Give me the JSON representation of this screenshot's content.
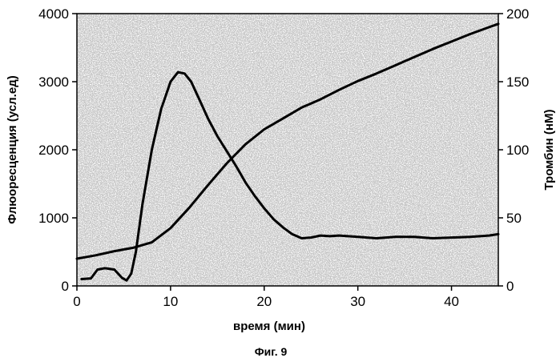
{
  "chart_data": {
    "type": "line",
    "xlabel": "время (мин)",
    "ylabel_left": "Флюоресценция (усл.ед)",
    "ylabel_right": "Тромбин (нМ)",
    "caption": "Фиг. 9",
    "xlim": [
      0,
      45
    ],
    "ylim_left": [
      0,
      4000
    ],
    "ylim_right": [
      0,
      200
    ],
    "x_ticks": [
      0,
      10,
      20,
      30,
      40
    ],
    "y_left_ticks": [
      0,
      1000,
      2000,
      3000,
      4000
    ],
    "y_right_ticks": [
      0,
      50,
      100,
      150,
      200
    ],
    "grid": false,
    "series": [
      {
        "axis": "left",
        "x": [
          0,
          2,
          4,
          6,
          8,
          10,
          12,
          14,
          16,
          18,
          20,
          22,
          24,
          26,
          28,
          30,
          32,
          34,
          36,
          38,
          40,
          42,
          44,
          45
        ],
        "y": [
          400,
          450,
          510,
          560,
          640,
          850,
          1150,
          1480,
          1800,
          2080,
          2300,
          2460,
          2620,
          2740,
          2880,
          3010,
          3120,
          3240,
          3360,
          3480,
          3590,
          3700,
          3800,
          3850
        ]
      },
      {
        "axis": "right",
        "x": [
          0.5,
          1.5,
          2.2,
          3,
          4,
          4.8,
          5.3,
          5.8,
          6.3,
          7,
          8,
          9,
          10,
          10.8,
          11.5,
          12.2,
          13,
          14,
          15,
          16,
          17,
          18,
          19,
          20,
          21,
          22,
          23,
          24,
          25,
          26,
          27,
          28,
          30,
          32,
          34,
          36,
          38,
          40,
          42,
          44,
          45
        ],
        "y": [
          5,
          5.5,
          12,
          13,
          12,
          6,
          4,
          9,
          25,
          60,
          100,
          130,
          150,
          157,
          156,
          150,
          138,
          123,
          110,
          99,
          88,
          76,
          66,
          57,
          49,
          43,
          38,
          35,
          35.5,
          37,
          36.5,
          37,
          36,
          35,
          36,
          36,
          35,
          35.5,
          36,
          37,
          38
        ]
      }
    ]
  }
}
